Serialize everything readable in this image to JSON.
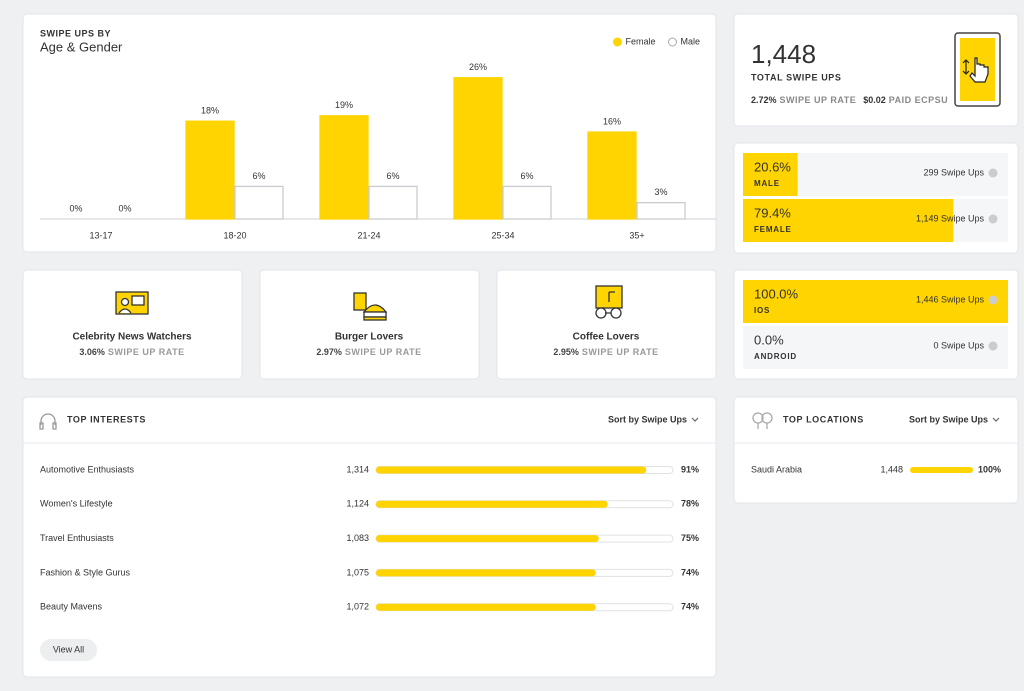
{
  "chart_data": {
    "type": "bar",
    "title": "SWIPE UPS BY",
    "subtitle": "Age & Gender",
    "categories": [
      "13-17",
      "18-20",
      "21-24",
      "25-34",
      "35+"
    ],
    "series": [
      {
        "name": "Female",
        "color": "#ffd400",
        "values": [
          0,
          18,
          19,
          26,
          16
        ],
        "value_labels": [
          "0%",
          "18%",
          "19%",
          "26%",
          "16%"
        ]
      },
      {
        "name": "Male",
        "color": "#ffffff",
        "values": [
          0,
          6,
          6,
          6,
          3
        ],
        "value_labels": [
          "0%",
          "6%",
          "6%",
          "6%",
          "3%"
        ]
      }
    ],
    "ylim": [
      0,
      30
    ],
    "legend": "top-right"
  },
  "summary": {
    "total": "1,448",
    "total_label": "TOTAL SWIPE UPS",
    "rate": "2.72%",
    "rate_label": "SWIPE UP RATE",
    "ecpsu": "$0.02",
    "ecpsu_label": "PAID ECPSU"
  },
  "gender": [
    {
      "value": 20.6,
      "value_label": "20.6%",
      "label": "MALE",
      "count": "299 Swipe Ups"
    },
    {
      "value": 79.4,
      "value_label": "79.4%",
      "label": "FEMALE",
      "count": "1,149 Swipe Ups"
    }
  ],
  "os": [
    {
      "value": 100.0,
      "value_label": "100.0%",
      "label": "IOS",
      "count": "1,446 Swipe Ups"
    },
    {
      "value": 0.0,
      "value_label": "0.0%",
      "label": "ANDROID",
      "count": "0 Swipe Ups"
    }
  ],
  "audiences": [
    {
      "name": "Celebrity News Watchers",
      "rate": "3.06%",
      "rate_label": "SWIPE UP RATE"
    },
    {
      "name": "Burger Lovers",
      "rate": "2.97%",
      "rate_label": "SWIPE UP RATE"
    },
    {
      "name": "Coffee Lovers",
      "rate": "2.95%",
      "rate_label": "SWIPE UP RATE"
    }
  ],
  "interests": {
    "title": "TOP INTERESTS",
    "sort": "Sort by Swipe Ups",
    "view_all": "View All",
    "rows": [
      {
        "name": "Automotive Enthusiasts",
        "count": "1,314",
        "value": 91,
        "value_label": "91%"
      },
      {
        "name": "Women's Lifestyle",
        "count": "1,124",
        "value": 78,
        "value_label": "78%"
      },
      {
        "name": "Travel Enthusiasts",
        "count": "1,083",
        "value": 75,
        "value_label": "75%"
      },
      {
        "name": "Fashion & Style Gurus",
        "count": "1,075",
        "value": 74,
        "value_label": "74%"
      },
      {
        "name": "Beauty Mavens",
        "count": "1,072",
        "value": 74,
        "value_label": "74%"
      }
    ]
  },
  "locations": {
    "title": "TOP LOCATIONS",
    "sort": "Sort by Swipe Ups",
    "rows": [
      {
        "name": "Saudi Arabia",
        "count": "1,448",
        "value": 100,
        "value_label": "100%"
      }
    ]
  }
}
